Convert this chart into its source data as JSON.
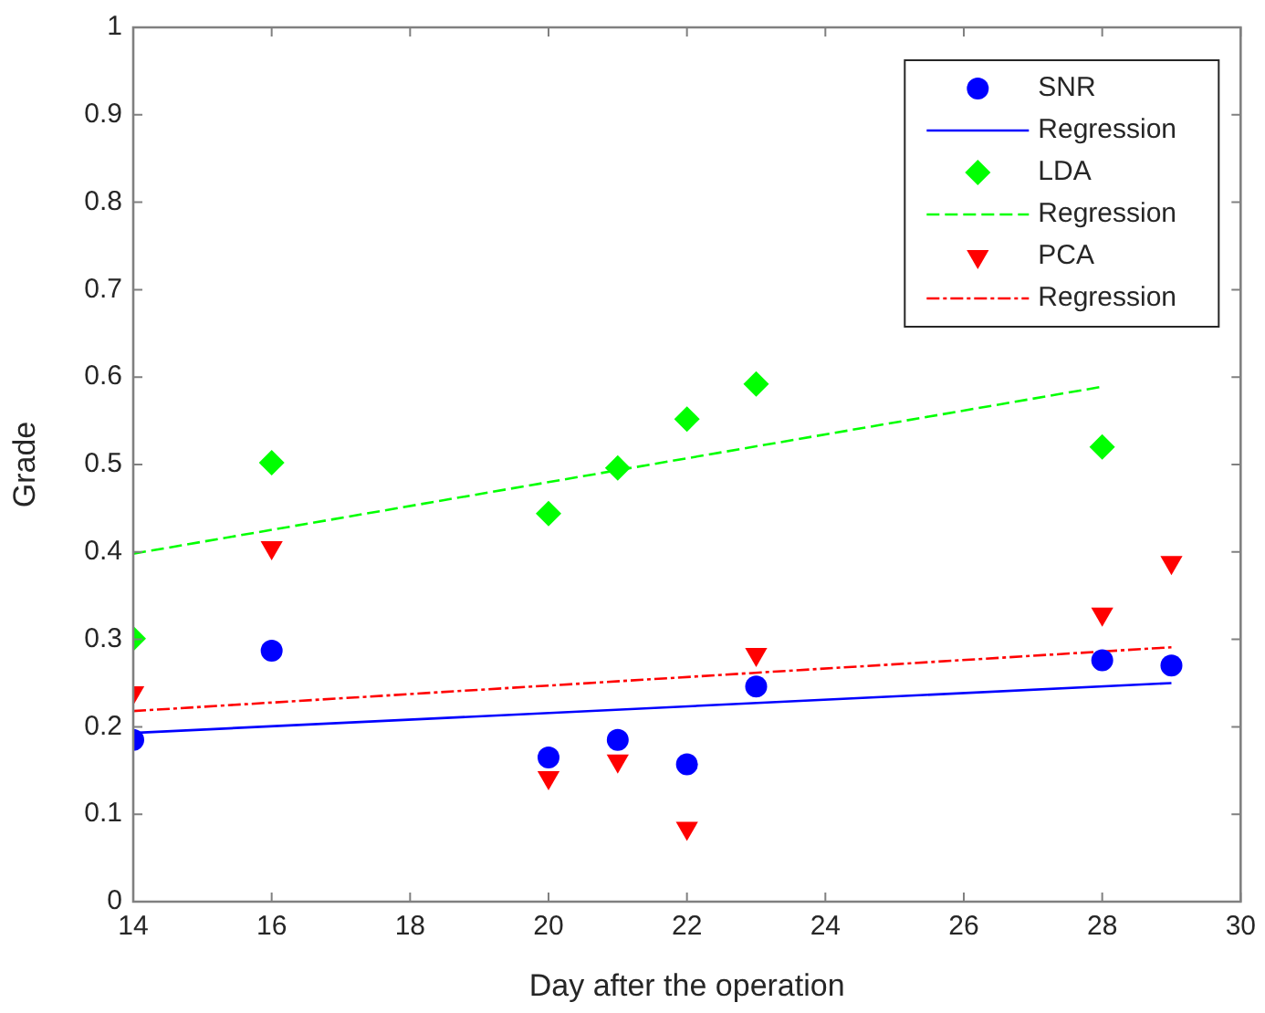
{
  "chart_data": {
    "type": "scatter",
    "xlabel": "Day after the operation",
    "ylabel": "Grade",
    "xlim": [
      14,
      30
    ],
    "xticks": [
      14,
      16,
      18,
      20,
      22,
      24,
      26,
      28,
      30
    ],
    "ylim": [
      0,
      1
    ],
    "yticks": [
      0,
      0.1,
      0.2,
      0.3,
      0.4,
      0.5,
      0.6,
      0.7,
      0.8,
      0.9,
      1
    ],
    "legend": "top right",
    "series": [
      {
        "name": "SNR",
        "marker": "circle",
        "color": "#0000ff",
        "x": [
          14,
          16,
          20,
          21,
          22,
          23,
          28,
          29
        ],
        "values": [
          0.185,
          0.287,
          0.165,
          0.185,
          0.157,
          0.246,
          0.276,
          0.27
        ]
      },
      {
        "name": "Regression",
        "type": "line",
        "line_style": "solid",
        "marker": "none",
        "color": "#0000ff",
        "x": [
          14,
          29
        ],
        "values": [
          0.193,
          0.25
        ]
      },
      {
        "name": "LDA",
        "marker": "diamond",
        "color": "#00ff00",
        "x": [
          14,
          16,
          20,
          21,
          22,
          23,
          28
        ],
        "values": [
          0.301,
          0.502,
          0.444,
          0.496,
          0.552,
          0.592,
          0.52
        ]
      },
      {
        "name": "Regression",
        "type": "line",
        "line_style": "dashed",
        "marker": "none",
        "color": "#00ff00",
        "x": [
          14,
          28
        ],
        "values": [
          0.398,
          0.589
        ]
      },
      {
        "name": "PCA",
        "marker": "triangle",
        "color": "#ff0000",
        "x": [
          14,
          16,
          20,
          21,
          22,
          23,
          28,
          29
        ],
        "values": [
          0.239,
          0.405,
          0.142,
          0.161,
          0.084,
          0.283,
          0.329,
          0.388
        ]
      },
      {
        "name": "Regression",
        "type": "line",
        "line_style": "dashdot",
        "marker": "none",
        "color": "#ff0000",
        "x": [
          14,
          29
        ],
        "values": [
          0.218,
          0.291
        ]
      }
    ]
  }
}
